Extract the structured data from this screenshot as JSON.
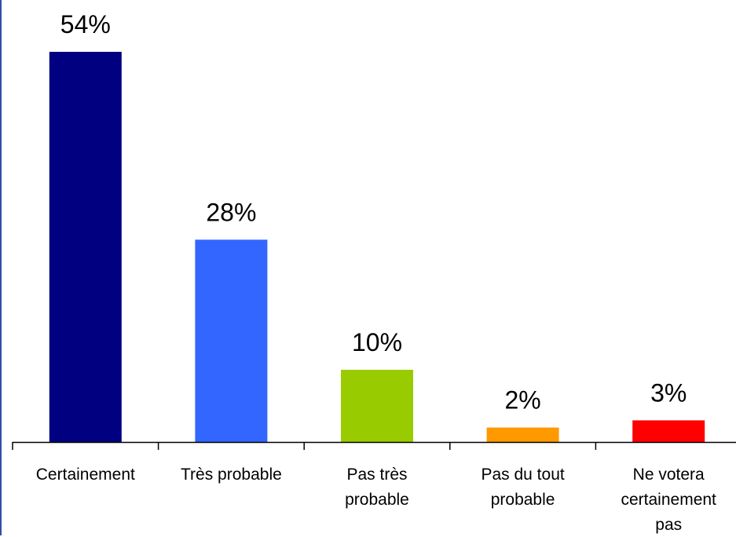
{
  "chart_data": {
    "type": "bar",
    "categories": [
      "Certainement",
      "Très probable",
      "Pas très probable",
      "Pas du tout probable",
      "Ne votera certainement pas"
    ],
    "category_lines": [
      [
        "Certainement"
      ],
      [
        "Très probable"
      ],
      [
        "Pas très",
        "probable"
      ],
      [
        "Pas du tout",
        "probable"
      ],
      [
        "Ne votera",
        "certainement",
        "pas"
      ]
    ],
    "values": [
      54,
      28,
      10,
      2,
      3
    ],
    "value_labels": [
      "54%",
      "28%",
      "10%",
      "2%",
      "3%"
    ],
    "colors": [
      "#000080",
      "#3366ff",
      "#99cc00",
      "#ff9900",
      "#ff0000"
    ],
    "ylim": [
      0,
      54
    ],
    "grid": false,
    "legend": "none"
  }
}
